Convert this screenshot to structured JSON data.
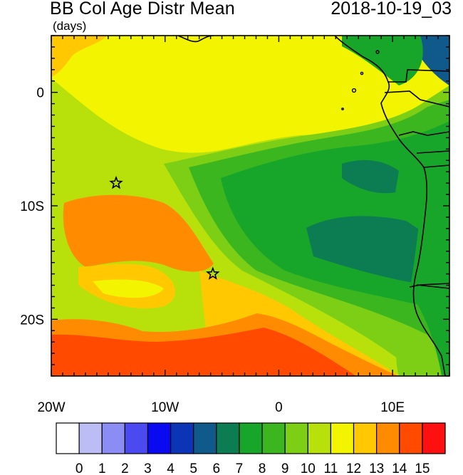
{
  "header": {
    "title": "BB Col Age Distr Mean",
    "units": "(days)",
    "datetime": "2018-10-19_03"
  },
  "axes": {
    "lon_ticks": [
      {
        "lon": -20,
        "label": "20W"
      },
      {
        "lon": -10,
        "label": "10W"
      },
      {
        "lon": 0,
        "label": "0"
      },
      {
        "lon": 10,
        "label": "10E"
      }
    ],
    "lat_ticks": [
      {
        "lat": 0,
        "label": "0"
      },
      {
        "lat": -10,
        "label": "10S"
      },
      {
        "lat": -20,
        "label": "20S"
      }
    ],
    "lon_range": [
      -20,
      15
    ],
    "lat_range": [
      -25,
      5
    ]
  },
  "markers": [
    {
      "type": "star",
      "lon": -14.3,
      "lat": -8.0
    },
    {
      "type": "star",
      "lon": -5.8,
      "lat": -16.0
    }
  ],
  "colorbar": {
    "colors": [
      "#ffffff",
      "#bdbdf5",
      "#8c8cf5",
      "#4a4af0",
      "#0a0af0",
      "#0b35b5",
      "#0f5a8a",
      "#0c7d53",
      "#17a62a",
      "#3cb61e",
      "#7ccf14",
      "#b8e10c",
      "#f2f400",
      "#ffc800",
      "#ff8c00",
      "#ff4a00",
      "#ff1010"
    ],
    "labels": [
      "0",
      "1",
      "2",
      "3",
      "4",
      "5",
      "6",
      "7",
      "8",
      "9",
      "10",
      "11",
      "12",
      "13",
      "14",
      "15"
    ]
  }
}
